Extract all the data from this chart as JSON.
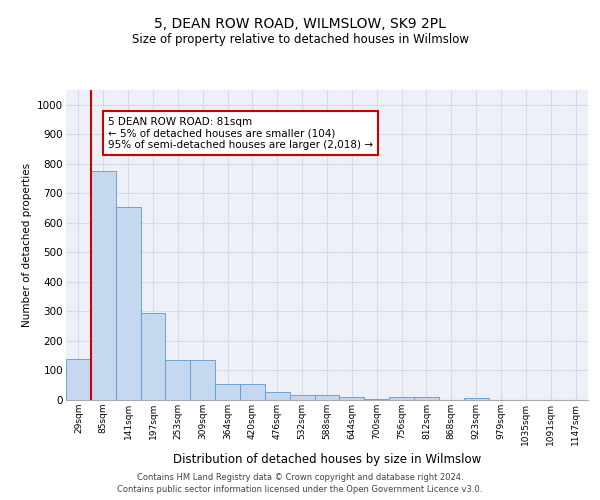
{
  "title": "5, DEAN ROW ROAD, WILMSLOW, SK9 2PL",
  "subtitle": "Size of property relative to detached houses in Wilmslow",
  "xlabel": "Distribution of detached houses by size in Wilmslow",
  "ylabel": "Number of detached properties",
  "categories": [
    "29sqm",
    "85sqm",
    "141sqm",
    "197sqm",
    "253sqm",
    "309sqm",
    "364sqm",
    "420sqm",
    "476sqm",
    "532sqm",
    "588sqm",
    "644sqm",
    "700sqm",
    "756sqm",
    "812sqm",
    "868sqm",
    "923sqm",
    "979sqm",
    "1035sqm",
    "1091sqm",
    "1147sqm"
  ],
  "values": [
    140,
    775,
    655,
    295,
    135,
    135,
    55,
    55,
    28,
    18,
    18,
    10,
    5,
    10,
    10,
    0,
    8,
    0,
    0,
    0,
    0
  ],
  "bar_color": "#c5d8f0",
  "bar_edge_color": "#5b9bd5",
  "red_line_x": 0.5,
  "ylim": [
    0,
    1050
  ],
  "yticks": [
    0,
    100,
    200,
    300,
    400,
    500,
    600,
    700,
    800,
    900,
    1000
  ],
  "annotation_text": "5 DEAN ROW ROAD: 81sqm\n← 5% of detached houses are smaller (104)\n95% of semi-detached houses are larger (2,018) →",
  "annotation_box_color": "#ffffff",
  "annotation_border_color": "#cc0000",
  "red_line_color": "#cc0000",
  "footer1": "Contains HM Land Registry data © Crown copyright and database right 2024.",
  "footer2": "Contains public sector information licensed under the Open Government Licence v3.0.",
  "grid_color": "#d0dce8",
  "background_color": "#edf1f7"
}
